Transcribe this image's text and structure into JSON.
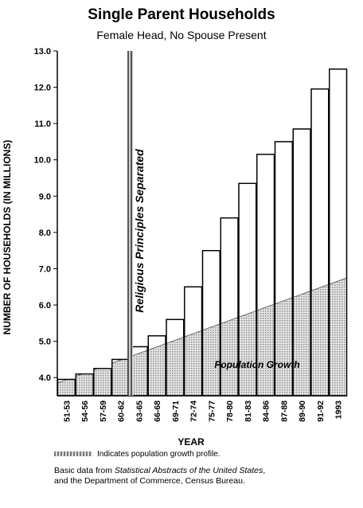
{
  "chart_data": {
    "type": "bar",
    "title": "Single Parent Households",
    "subtitle": "Female Head, No Spouse Present",
    "ylabel": "NUMBER OF HOUSEHOLDS (IN MILLIONS)",
    "xlabel": "YEAR",
    "ylim": [
      3.5,
      13.0
    ],
    "yticks": [
      "4.0",
      "5.0",
      "6.0",
      "7.0",
      "8.0",
      "9.0",
      "10.0",
      "11.0",
      "12.0",
      "13.0"
    ],
    "categories": [
      "51-53",
      "54-56",
      "57-59",
      "60-62",
      "63-65",
      "66-68",
      "69-71",
      "72-74",
      "75-77",
      "78-80",
      "81-83",
      "84-86",
      "87-88",
      "89-90",
      "91-92",
      "1993"
    ],
    "values": [
      3.95,
      4.1,
      4.25,
      4.5,
      4.85,
      5.15,
      5.6,
      6.5,
      7.5,
      8.4,
      9.35,
      10.15,
      10.5,
      10.85,
      11.95,
      12.5
    ],
    "population_growth": {
      "start": 3.85,
      "end": 6.75,
      "label": "Population Growth"
    },
    "annotation": {
      "label": "Religious Principles Separated",
      "after_category": "60-62"
    },
    "colors": {
      "bar_fill": "#ffffff",
      "bar_stroke": "#000000",
      "shade": "#bdbdbd"
    }
  },
  "legend": {
    "text": "Indicates population growth profile."
  },
  "source": {
    "prefix": "Basic data from ",
    "italic": "Statistical Abstracts of the United States",
    "suffix": ",",
    "line2": "and the Department of Commerce, Census Bureau."
  }
}
